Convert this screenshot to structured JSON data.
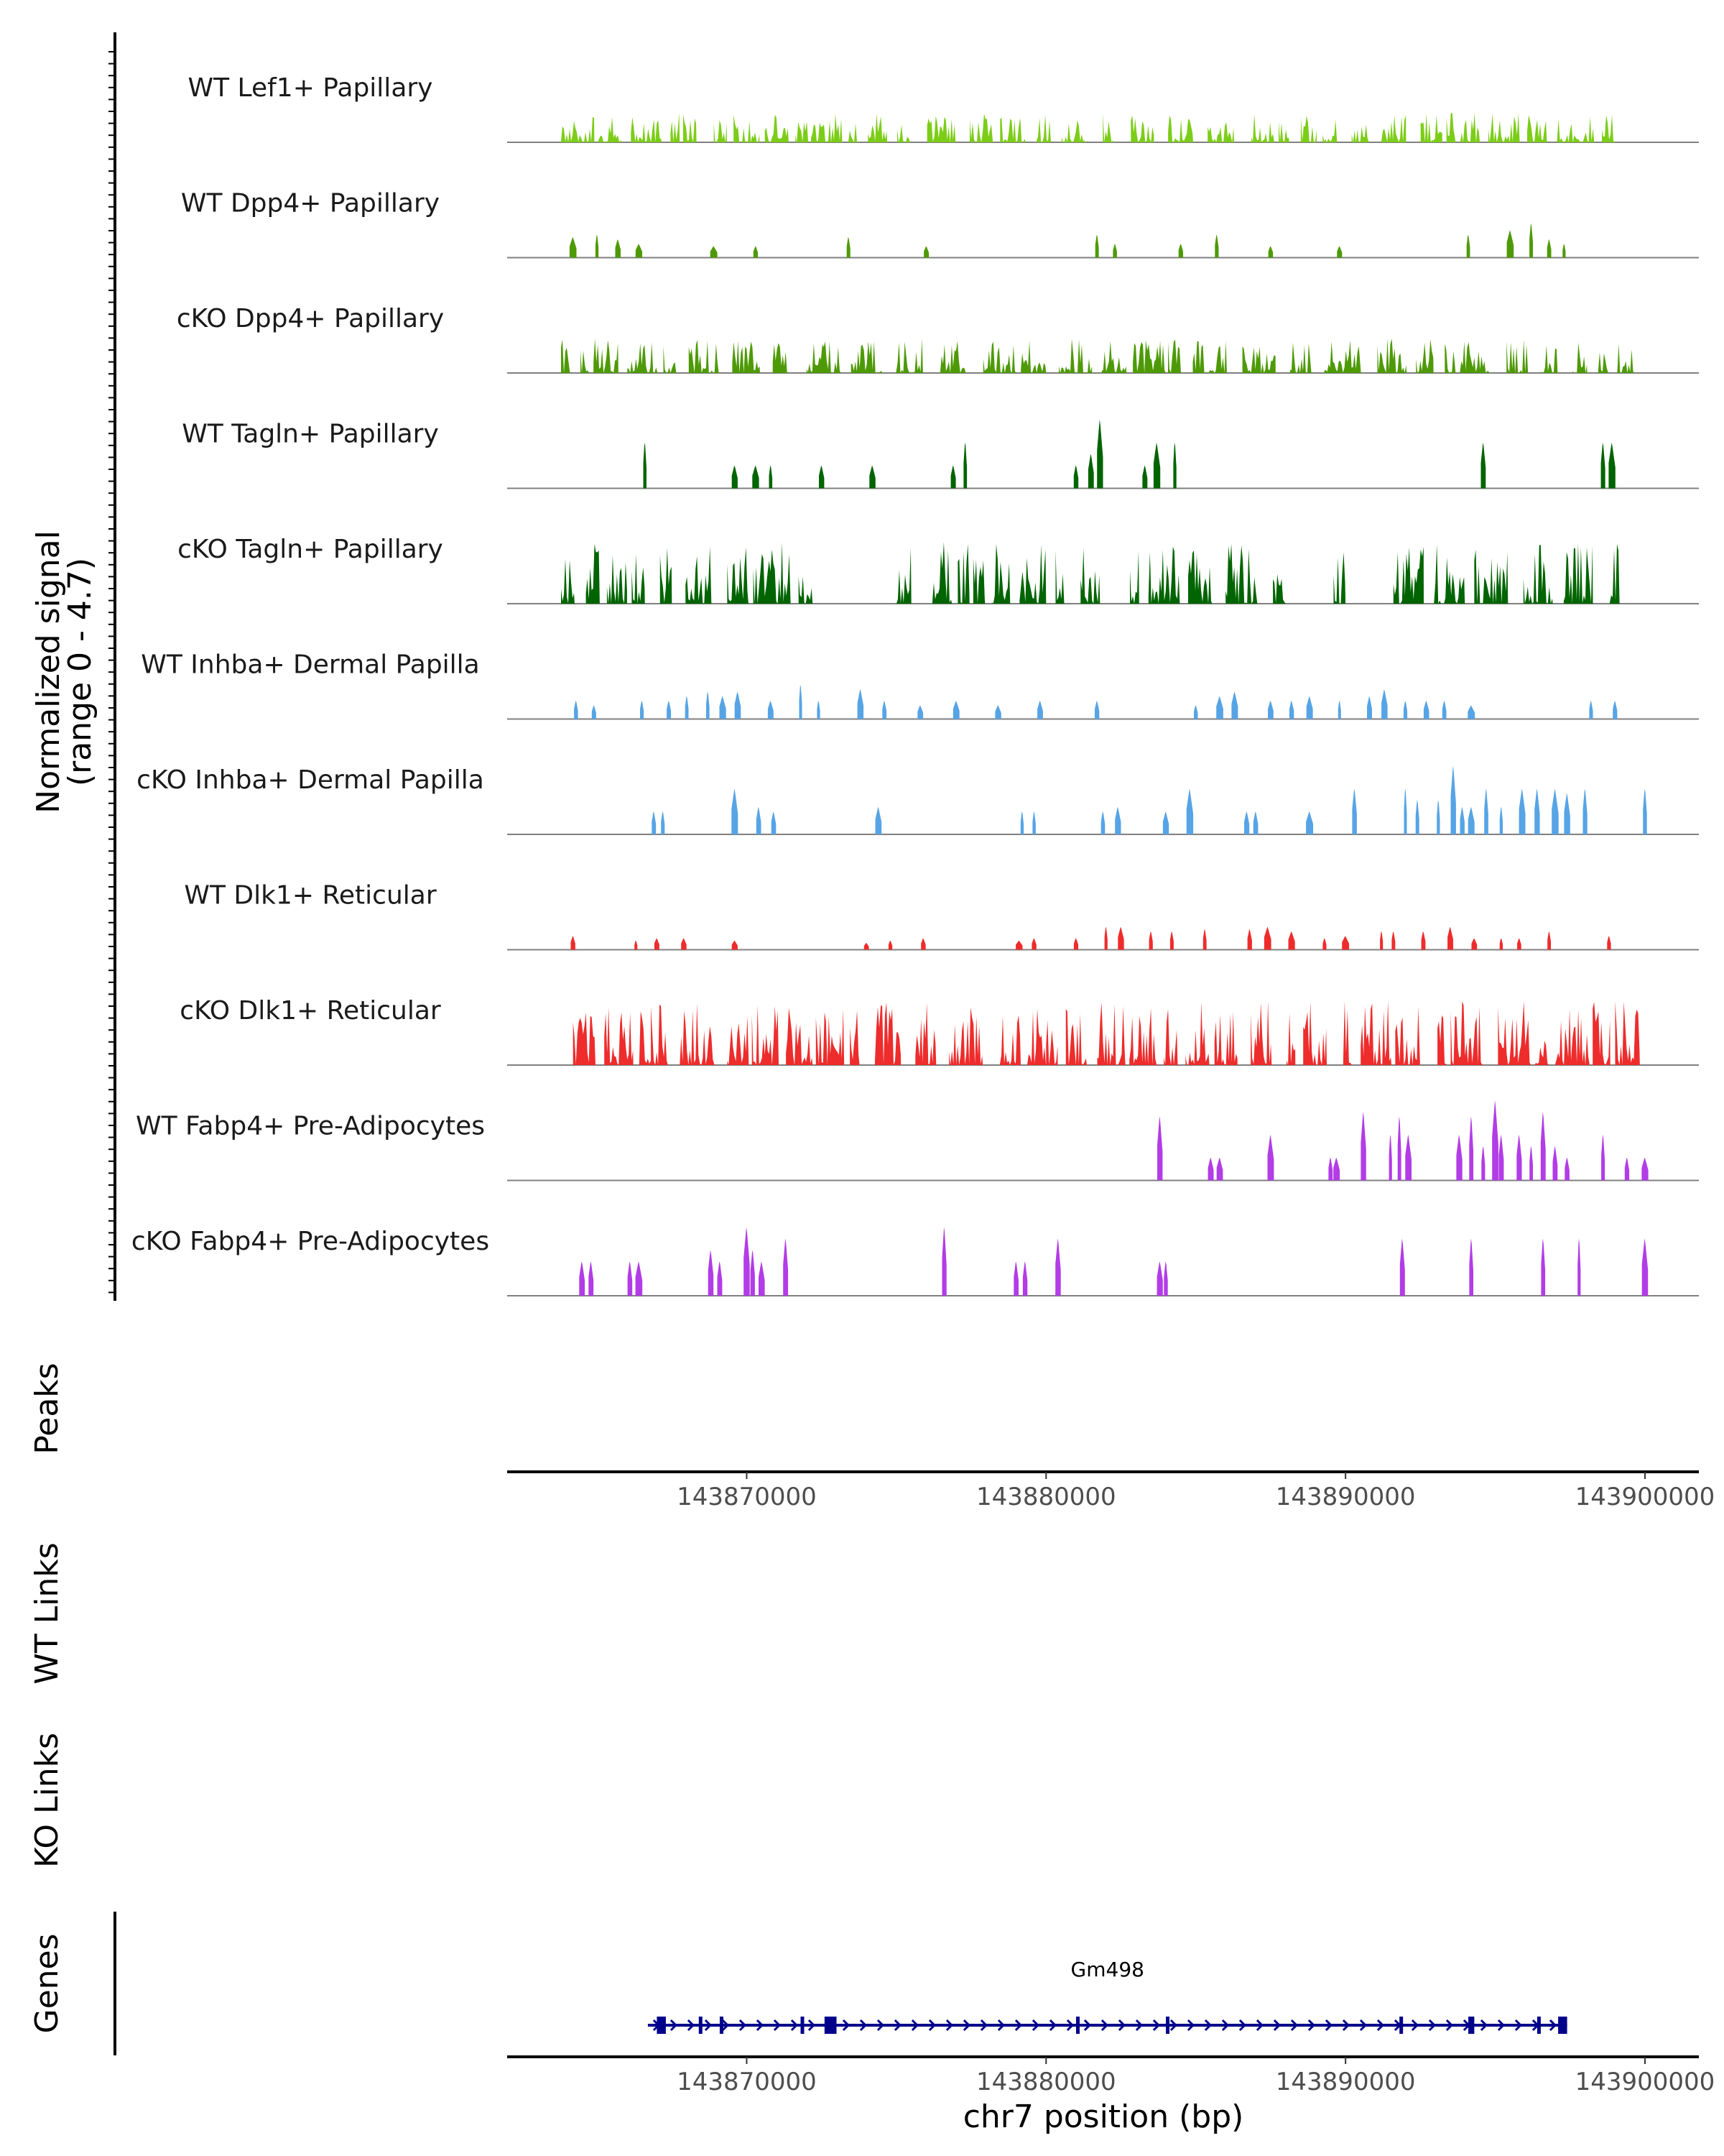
{
  "chart_data": {
    "type": "area",
    "region": {
      "chromosome": "chr7",
      "start": 143862000,
      "end": 143901800
    },
    "signal_axis": {
      "title_line1": "Normalized signal",
      "title_line2": "(range 0 - 4.7)",
      "range": [
        0,
        4.7
      ]
    },
    "tracks": [
      {
        "label": "WT Lef1+ Papillary",
        "color": "#7CCD18",
        "seed": 11,
        "mode": "dense",
        "max": 1.3,
        "intervals": [
          [
            143863800,
            143899000
          ]
        ]
      },
      {
        "label": "WT Dpp4+ Papillary",
        "color": "#4E9A06",
        "seed": 12,
        "mode": "sparse",
        "max": 1.6,
        "peaks": [
          [
            143864200,
            0.9
          ],
          [
            143865000,
            1.0
          ],
          [
            143865700,
            0.8
          ],
          [
            143866400,
            0.6
          ],
          [
            143868900,
            0.5
          ],
          [
            143870300,
            0.5
          ],
          [
            143873400,
            0.9
          ],
          [
            143876000,
            0.5
          ],
          [
            143881700,
            1.0
          ],
          [
            143882300,
            0.6
          ],
          [
            143884500,
            0.6
          ],
          [
            143885700,
            1.0
          ],
          [
            143887500,
            0.5
          ],
          [
            143889800,
            0.5
          ],
          [
            143894100,
            1.0
          ],
          [
            143895500,
            1.2
          ],
          [
            143896200,
            1.5
          ],
          [
            143896800,
            0.8
          ],
          [
            143897300,
            0.6
          ]
        ]
      },
      {
        "label": "cKO Dpp4+ Papillary",
        "color": "#4E9A06",
        "seed": 13,
        "mode": "dense",
        "max": 1.5,
        "intervals": [
          [
            143863800,
            143871500
          ],
          [
            143872000,
            143899900
          ]
        ]
      },
      {
        "label": "WT Tagln+ Papillary",
        "color": "#006400",
        "seed": 14,
        "mode": "sparse",
        "max": 3.0,
        "peaks": [
          [
            143866600,
            2.0
          ],
          [
            143869600,
            1.0
          ],
          [
            143870300,
            1.0
          ],
          [
            143870800,
            1.0
          ],
          [
            143872500,
            1.0
          ],
          [
            143874200,
            1.0
          ],
          [
            143876900,
            1.0
          ],
          [
            143877300,
            2.0
          ],
          [
            143881000,
            1.0
          ],
          [
            143881500,
            1.5
          ],
          [
            143881800,
            3.0
          ],
          [
            143883300,
            1.0
          ],
          [
            143883700,
            2.0
          ],
          [
            143884300,
            2.0
          ],
          [
            143894600,
            2.0
          ],
          [
            143898600,
            2.0
          ],
          [
            143898900,
            2.0
          ]
        ]
      },
      {
        "label": "cKO Tagln+ Papillary",
        "color": "#006400",
        "seed": 15,
        "mode": "dense",
        "max": 2.7,
        "intervals": [
          [
            143863800,
            143872200
          ],
          [
            143875000,
            143875500
          ],
          [
            143876200,
            143881800
          ],
          [
            143882800,
            143888000
          ],
          [
            143889600,
            143890000
          ],
          [
            143891600,
            143899300
          ]
        ]
      },
      {
        "label": "WT Inhba+ Dermal Papilla",
        "color": "#56A4E6",
        "seed": 16,
        "mode": "sparse",
        "max": 2.5,
        "peaks": [
          [
            143864300,
            0.8
          ],
          [
            143864900,
            0.6
          ],
          [
            143866500,
            0.8
          ],
          [
            143867400,
            0.8
          ],
          [
            143868000,
            1.0
          ],
          [
            143868700,
            1.2
          ],
          [
            143869200,
            1.0
          ],
          [
            143869700,
            1.2
          ],
          [
            143870800,
            0.8
          ],
          [
            143871800,
            1.5
          ],
          [
            143872400,
            0.8
          ],
          [
            143873800,
            1.3
          ],
          [
            143874600,
            0.8
          ],
          [
            143875800,
            0.6
          ],
          [
            143877000,
            0.8
          ],
          [
            143878400,
            0.6
          ],
          [
            143879800,
            0.8
          ],
          [
            143881700,
            0.8
          ],
          [
            143885000,
            0.6
          ],
          [
            143885800,
            1.0
          ],
          [
            143886300,
            1.2
          ],
          [
            143887500,
            0.8
          ],
          [
            143888200,
            0.8
          ],
          [
            143888800,
            1.0
          ],
          [
            143889800,
            0.8
          ],
          [
            143890800,
            1.0
          ],
          [
            143891300,
            1.3
          ],
          [
            143892000,
            0.8
          ],
          [
            143892700,
            0.8
          ],
          [
            143893300,
            0.8
          ],
          [
            143894200,
            0.6
          ],
          [
            143898200,
            0.8
          ],
          [
            143899000,
            0.8
          ]
        ]
      },
      {
        "label": "cKO Inhba+ Dermal Papilla",
        "color": "#56A4E6",
        "seed": 17,
        "mode": "sparse",
        "max": 4.7,
        "peaks": [
          [
            143866900,
            1.0
          ],
          [
            143867200,
            1.0
          ],
          [
            143869600,
            2.0
          ],
          [
            143870400,
            1.2
          ],
          [
            143870900,
            1.0
          ],
          [
            143874400,
            1.2
          ],
          [
            143879200,
            1.0
          ],
          [
            143879600,
            1.0
          ],
          [
            143881900,
            1.0
          ],
          [
            143882400,
            1.2
          ],
          [
            143884000,
            1.0
          ],
          [
            143884800,
            2.0
          ],
          [
            143886700,
            1.0
          ],
          [
            143887000,
            1.0
          ],
          [
            143888800,
            1.0
          ],
          [
            143890300,
            2.0
          ],
          [
            143892000,
            2.0
          ],
          [
            143892400,
            1.5
          ],
          [
            143893100,
            1.5
          ],
          [
            143893600,
            3.0
          ],
          [
            143893900,
            1.2
          ],
          [
            143894200,
            1.2
          ],
          [
            143894700,
            2.0
          ],
          [
            143895200,
            1.2
          ],
          [
            143895900,
            2.0
          ],
          [
            143896400,
            2.0
          ],
          [
            143897000,
            2.0
          ],
          [
            143897400,
            1.8
          ],
          [
            143898000,
            2.0
          ],
          [
            143900000,
            2.0
          ]
        ]
      },
      {
        "label": "WT Dlk1+ Reticular",
        "color": "#EE2C2C",
        "seed": 18,
        "mode": "sparse",
        "max": 3.2,
        "peaks": [
          [
            143864200,
            0.6
          ],
          [
            143866300,
            0.4
          ],
          [
            143867000,
            0.5
          ],
          [
            143867900,
            0.5
          ],
          [
            143869600,
            0.4
          ],
          [
            143874000,
            0.3
          ],
          [
            143874800,
            0.4
          ],
          [
            143875900,
            0.5
          ],
          [
            143879100,
            0.4
          ],
          [
            143879600,
            0.5
          ],
          [
            143881000,
            0.5
          ],
          [
            143882000,
            1.0
          ],
          [
            143882500,
            1.0
          ],
          [
            143883500,
            0.8
          ],
          [
            143884200,
            0.8
          ],
          [
            143885300,
            0.9
          ],
          [
            143886800,
            0.9
          ],
          [
            143887400,
            1.0
          ],
          [
            143888200,
            0.8
          ],
          [
            143889300,
            0.5
          ],
          [
            143890000,
            0.6
          ],
          [
            143891200,
            0.8
          ],
          [
            143891600,
            0.8
          ],
          [
            143892600,
            0.8
          ],
          [
            143893500,
            1.0
          ],
          [
            143894300,
            0.5
          ],
          [
            143895200,
            0.5
          ],
          [
            143895800,
            0.5
          ],
          [
            143896800,
            0.8
          ],
          [
            143898800,
            0.6
          ]
        ]
      },
      {
        "label": "cKO Dlk1+ Reticular",
        "color": "#EE2C2C",
        "seed": 19,
        "mode": "dense",
        "max": 2.8,
        "intervals": [
          [
            143864200,
            143866800
          ],
          [
            143866800,
            143880000
          ],
          [
            143880000,
            143899900
          ]
        ]
      },
      {
        "label": "WT Fabp4+ Pre-Adipocytes",
        "color": "#B23CE6",
        "seed": 20,
        "mode": "sparse",
        "max": 4.0,
        "peaks": [
          [
            143883800,
            2.8
          ],
          [
            143885500,
            1.0
          ],
          [
            143885800,
            1.0
          ],
          [
            143887500,
            2.0
          ],
          [
            143889500,
            1.0
          ],
          [
            143889700,
            1.0
          ],
          [
            143890600,
            3.0
          ],
          [
            143891500,
            2.0
          ],
          [
            143891800,
            2.8
          ],
          [
            143892100,
            2.0
          ],
          [
            143893800,
            2.0
          ],
          [
            143894200,
            2.8
          ],
          [
            143894600,
            1.5
          ],
          [
            143895000,
            3.5
          ],
          [
            143895200,
            2.0
          ],
          [
            143895800,
            2.0
          ],
          [
            143896200,
            1.5
          ],
          [
            143896600,
            3.0
          ],
          [
            143897000,
            1.5
          ],
          [
            143897400,
            1.0
          ],
          [
            143898600,
            2.0
          ],
          [
            143899400,
            1.0
          ],
          [
            143900000,
            1.0
          ]
        ]
      },
      {
        "label": "cKO Fabp4+ Pre-Adipocytes",
        "color": "#B23CE6",
        "seed": 21,
        "mode": "sparse",
        "max": 4.0,
        "peaks": [
          [
            143864500,
            1.5
          ],
          [
            143864800,
            1.5
          ],
          [
            143866100,
            1.5
          ],
          [
            143866400,
            1.5
          ],
          [
            143868800,
            2.0
          ],
          [
            143869100,
            1.5
          ],
          [
            143870000,
            3.0
          ],
          [
            143870200,
            2.0
          ],
          [
            143870500,
            1.5
          ],
          [
            143871300,
            2.5
          ],
          [
            143876600,
            3.0
          ],
          [
            143879000,
            1.5
          ],
          [
            143879300,
            1.5
          ],
          [
            143880400,
            2.5
          ],
          [
            143883800,
            1.5
          ],
          [
            143884000,
            1.5
          ],
          [
            143891900,
            2.5
          ],
          [
            143894200,
            2.5
          ],
          [
            143896600,
            2.5
          ],
          [
            143897800,
            2.5
          ],
          [
            143900000,
            2.5
          ]
        ]
      }
    ],
    "panels": {
      "peaks": "Peaks",
      "wt_links": "WT Links",
      "ko_links": "KO Links",
      "genes": "Genes"
    },
    "x_ticks": [
      143870000,
      143880000,
      143890000,
      143900000
    ],
    "x_tick_labels": [
      "143870000",
      "143880000",
      "143890000",
      "143900000"
    ],
    "x_axis_title": "chr7 position (bp)",
    "gene": {
      "name": "Gm498",
      "color": "#00008B",
      "start": 143866700,
      "end": 143897400,
      "strand": "+",
      "exons": [
        [
          143867000,
          143867300
        ],
        [
          143868400,
          143868500
        ],
        [
          143869100,
          143869200
        ],
        [
          143871800,
          143871900
        ],
        [
          143872600,
          143873000
        ],
        [
          143881000,
          143881100
        ],
        [
          143884000,
          143884100
        ],
        [
          143891800,
          143891900
        ],
        [
          143894100,
          143894300
        ],
        [
          143896400,
          143896500
        ],
        [
          143897100,
          143897400
        ]
      ]
    }
  }
}
